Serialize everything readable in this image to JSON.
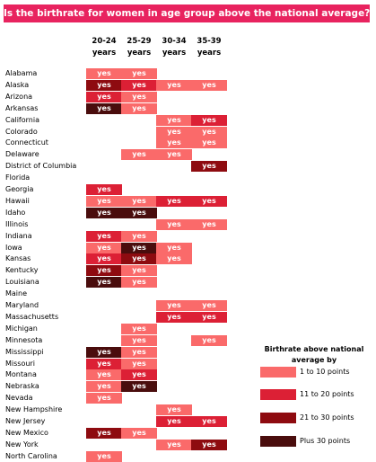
{
  "chart_data": {
    "type": "table",
    "title": "Is the birthrate for women  in age group above the national average?",
    "columns": [
      {
        "line1": "20-24",
        "line2": "years"
      },
      {
        "line1": "25-29",
        "line2": "years"
      },
      {
        "line1": "30-34",
        "line2": "years"
      },
      {
        "line1": "35-39",
        "line2": "years"
      }
    ],
    "cell_text": "yes",
    "rows": [
      {
        "state": "Alabama",
        "bands": [
          0,
          0,
          null,
          null
        ]
      },
      {
        "state": "Alaska",
        "bands": [
          2,
          1,
          0,
          0
        ]
      },
      {
        "state": "Arizona",
        "bands": [
          1,
          0,
          null,
          null
        ]
      },
      {
        "state": "Arkansas",
        "bands": [
          3,
          0,
          null,
          null
        ]
      },
      {
        "state": "California",
        "bands": [
          null,
          null,
          0,
          1
        ]
      },
      {
        "state": "Colorado",
        "bands": [
          null,
          null,
          0,
          0
        ]
      },
      {
        "state": "Connecticut",
        "bands": [
          null,
          null,
          0,
          0
        ]
      },
      {
        "state": "Delaware",
        "bands": [
          null,
          0,
          0,
          null
        ]
      },
      {
        "state": "District of Columbia",
        "bands": [
          null,
          null,
          null,
          2
        ]
      },
      {
        "state": "Florida",
        "bands": [
          null,
          null,
          null,
          null
        ]
      },
      {
        "state": "Georgia",
        "bands": [
          1,
          null,
          null,
          null
        ]
      },
      {
        "state": "Hawaii",
        "bands": [
          0,
          0,
          1,
          1
        ]
      },
      {
        "state": "Idaho",
        "bands": [
          3,
          3,
          null,
          null
        ]
      },
      {
        "state": "Illinois",
        "bands": [
          null,
          null,
          0,
          0
        ]
      },
      {
        "state": "Indiana",
        "bands": [
          1,
          0,
          null,
          null
        ]
      },
      {
        "state": "Iowa",
        "bands": [
          0,
          3,
          0,
          null
        ]
      },
      {
        "state": "Kansas",
        "bands": [
          1,
          2,
          0,
          null
        ]
      },
      {
        "state": "Kentucky",
        "bands": [
          2,
          0,
          null,
          null
        ]
      },
      {
        "state": "Louisiana",
        "bands": [
          3,
          0,
          null,
          null
        ]
      },
      {
        "state": "Maine",
        "bands": [
          null,
          null,
          null,
          null
        ]
      },
      {
        "state": "Maryland",
        "bands": [
          null,
          null,
          0,
          0
        ]
      },
      {
        "state": "Massachusetts",
        "bands": [
          null,
          null,
          1,
          1
        ]
      },
      {
        "state": "Michigan",
        "bands": [
          null,
          0,
          null,
          null
        ]
      },
      {
        "state": "Minnesota",
        "bands": [
          null,
          0,
          null,
          0
        ]
      },
      {
        "state": "Mississippi",
        "bands": [
          3,
          0,
          null,
          null
        ]
      },
      {
        "state": "Missouri",
        "bands": [
          1,
          0,
          null,
          null
        ]
      },
      {
        "state": "Montana",
        "bands": [
          0,
          1,
          null,
          null
        ]
      },
      {
        "state": "Nebraska",
        "bands": [
          0,
          3,
          null,
          null
        ]
      },
      {
        "state": "Nevada",
        "bands": [
          0,
          null,
          null,
          null
        ]
      },
      {
        "state": "New Hampshire",
        "bands": [
          null,
          null,
          0,
          null
        ]
      },
      {
        "state": "New Jersey",
        "bands": [
          null,
          null,
          1,
          1
        ]
      },
      {
        "state": "New Mexico",
        "bands": [
          2,
          0,
          null,
          null
        ]
      },
      {
        "state": "New York",
        "bands": [
          null,
          null,
          0,
          2
        ]
      },
      {
        "state": "North Carolina",
        "bands": [
          0,
          null,
          null,
          null
        ]
      }
    ],
    "legend": {
      "title": "Birthrate above national average by",
      "entries": [
        {
          "label": "1 to 10 points"
        },
        {
          "label": "11 to 20 points"
        },
        {
          "label": "21 to 30 points"
        },
        {
          "label": "Plus 30 points"
        }
      ]
    },
    "band_colors": [
      "#fa6a6a",
      "#dc2035",
      "#8e0b10",
      "#4a0d0d"
    ],
    "title_background": "#e8235f"
  }
}
